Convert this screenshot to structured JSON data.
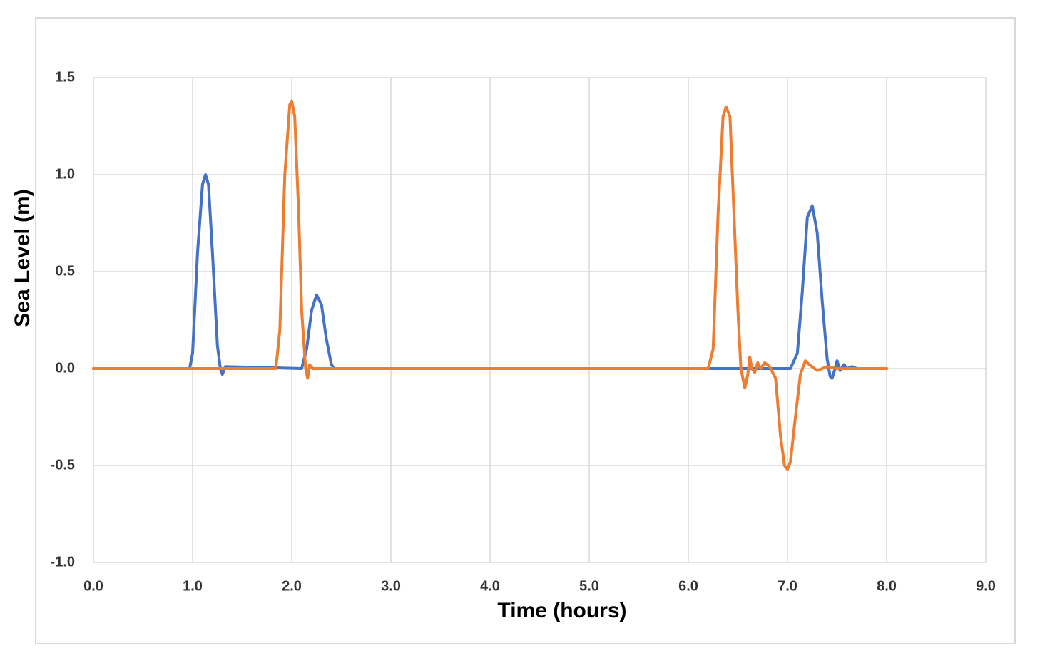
{
  "chart_data": {
    "type": "line",
    "xlabel": "Time (hours)",
    "ylabel": "Sea Level (m)",
    "xlim": [
      0,
      9
    ],
    "xticks": [
      {
        "value": 0,
        "label": "0.0"
      },
      {
        "value": 1,
        "label": "1.0"
      },
      {
        "value": 2,
        "label": "2.0"
      },
      {
        "value": 3,
        "label": "3.0"
      },
      {
        "value": 4,
        "label": "4.0"
      },
      {
        "value": 5,
        "label": "5.0"
      },
      {
        "value": 6,
        "label": "6.0"
      },
      {
        "value": 7,
        "label": "7.0"
      },
      {
        "value": 8,
        "label": "8.0"
      },
      {
        "value": 9,
        "label": "9.0"
      }
    ],
    "ylim": [
      -1,
      1.5
    ],
    "yticks": [
      {
        "value": -1,
        "label": "-1.0"
      },
      -0.5,
      {
        "value": 0,
        "label": "0.0"
      },
      0.5,
      {
        "value": 1,
        "label": "1.0"
      },
      1.5
    ],
    "grid": true,
    "series": [
      {
        "color": "#4472c4",
        "x": [
          0,
          0.97,
          1.0,
          1.05,
          1.1,
          1.13,
          1.16,
          1.2,
          1.25,
          1.28,
          1.3,
          1.33,
          2.1,
          2.15,
          2.2,
          2.25,
          2.3,
          2.35,
          2.4,
          2.43,
          7.03,
          7.1,
          7.15,
          7.2,
          7.25,
          7.3,
          7.35,
          7.4,
          7.43,
          7.45,
          7.48,
          7.5,
          7.53,
          7.57,
          7.6,
          7.65,
          7.7,
          8.0
        ],
        "values": [
          0,
          0,
          0.08,
          0.6,
          0.95,
          1.0,
          0.95,
          0.6,
          0.12,
          0,
          -0.03,
          0.01,
          0,
          0.1,
          0.3,
          0.38,
          0.33,
          0.15,
          0.02,
          0,
          0,
          0.08,
          0.4,
          0.78,
          0.84,
          0.7,
          0.35,
          0.05,
          -0.04,
          -0.05,
          0,
          0.04,
          -0.01,
          0.02,
          0,
          0.01,
          0,
          0
        ]
      },
      {
        "color": "#ed7d31",
        "x": [
          0,
          1.84,
          1.88,
          1.93,
          1.98,
          2.0,
          2.03,
          2.07,
          2.1,
          2.14,
          2.16,
          2.18,
          2.21,
          2.3,
          6.2,
          6.25,
          6.3,
          6.35,
          6.38,
          6.42,
          6.46,
          6.5,
          6.53,
          6.57,
          6.6,
          6.62,
          6.64,
          6.67,
          6.7,
          6.73,
          6.77,
          6.82,
          6.88,
          6.93,
          6.97,
          7.0,
          7.03,
          7.08,
          7.13,
          7.18,
          7.22,
          7.3,
          7.4,
          7.5,
          8.0
        ],
        "values": [
          0,
          0,
          0.2,
          1.0,
          1.36,
          1.38,
          1.3,
          0.8,
          0.3,
          0,
          -0.05,
          0.02,
          0,
          0,
          0,
          0.1,
          0.8,
          1.3,
          1.35,
          1.3,
          0.8,
          0.3,
          0,
          -0.1,
          -0.03,
          0.06,
          0,
          -0.02,
          0.03,
          0,
          0.03,
          0.01,
          -0.05,
          -0.35,
          -0.5,
          -0.52,
          -0.48,
          -0.25,
          -0.03,
          0.04,
          0.02,
          -0.01,
          0.01,
          0,
          0
        ]
      }
    ]
  }
}
